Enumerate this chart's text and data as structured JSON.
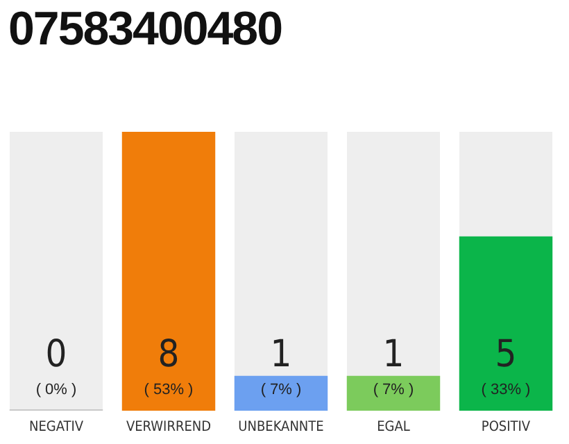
{
  "chart_data": {
    "type": "bar",
    "title": "07583400480",
    "categories": [
      "NEGATIV",
      "VERWIRREND",
      "UNBEKANNTE",
      "EGAL",
      "POSITIV"
    ],
    "values": [
      0,
      8,
      1,
      1,
      5
    ],
    "colors": [
      "#c8c8c8",
      "#f07d0a",
      "#6ca0f0",
      "#7ccb5c",
      "#0bb54a"
    ],
    "annotations": [
      "( 0% )",
      "( 53% )",
      "( 7% )",
      "( 7% )",
      "( 33% )"
    ],
    "tick_labels": "x",
    "data_labels": true,
    "grid": false,
    "legend": false
  }
}
